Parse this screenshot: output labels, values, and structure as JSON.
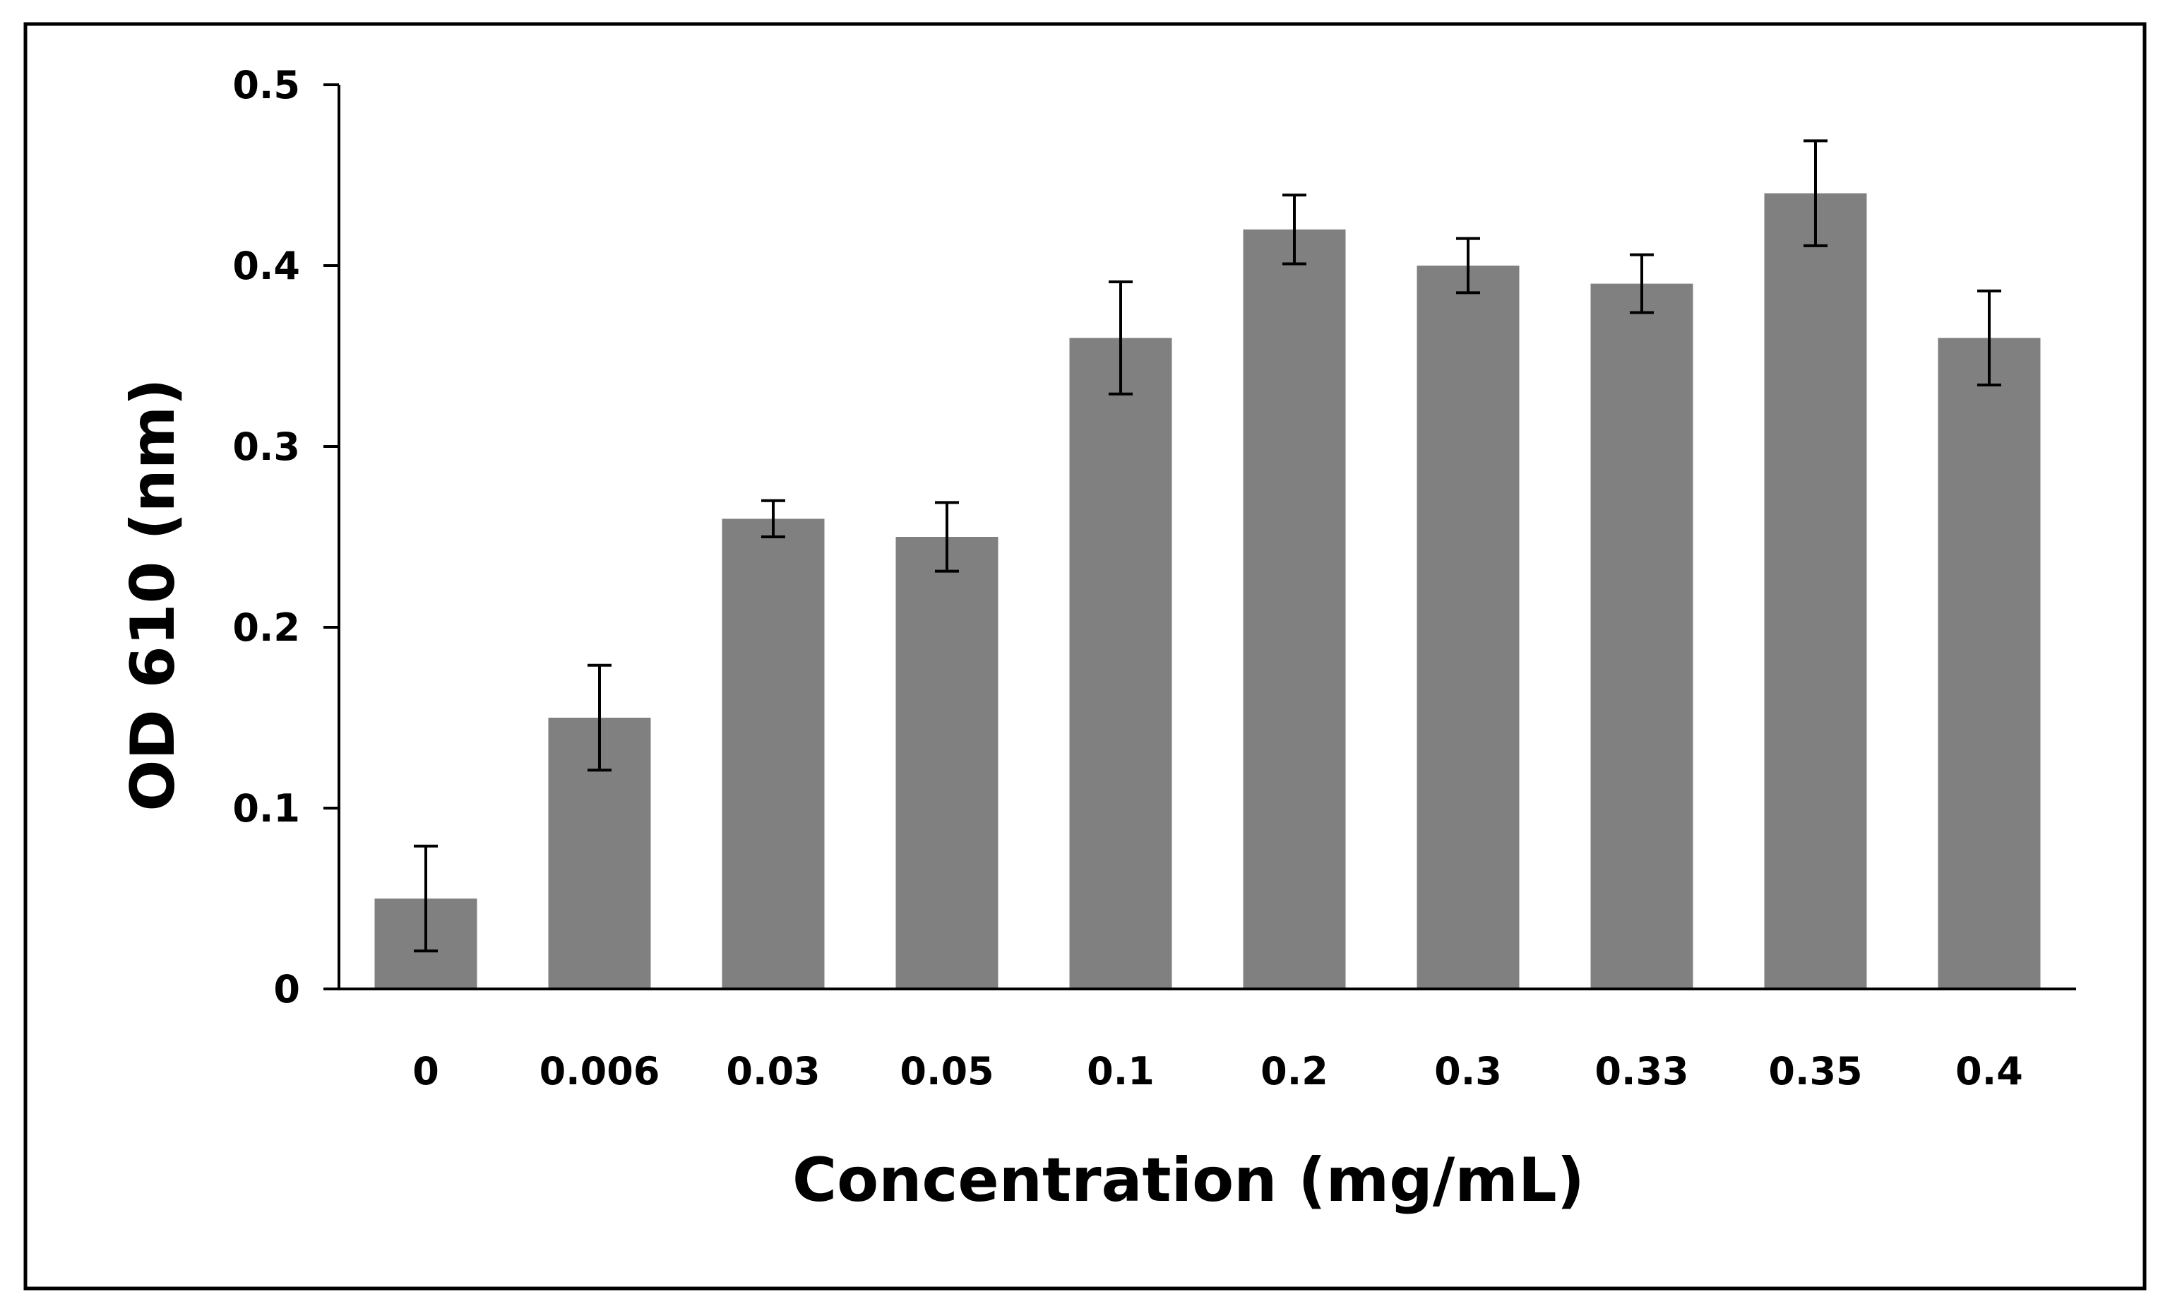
{
  "chart_data": {
    "type": "bar",
    "title": "",
    "xlabel": "Concentration (mg/mL)",
    "ylabel": "OD 610 (nm)",
    "categories": [
      "0",
      "0.006",
      "0.03",
      "0.05",
      "0.1",
      "0.2",
      "0.3",
      "0.33",
      "0.35",
      "0.4"
    ],
    "values": [
      0.05,
      0.15,
      0.26,
      0.25,
      0.36,
      0.42,
      0.4,
      0.39,
      0.44,
      0.36
    ],
    "error": [
      0.029,
      0.029,
      0.01,
      0.019,
      0.031,
      0.019,
      0.015,
      0.016,
      0.029,
      0.026
    ],
    "ylim": [
      0,
      0.5
    ],
    "yticks": [
      "0",
      "0.1",
      "0.2",
      "0.3",
      "0.4",
      "0.5"
    ],
    "grid": false,
    "legend": "none",
    "colors": {
      "bar": "#808080",
      "axis": "#000000",
      "frame": "#000000",
      "background": "#ffffff"
    }
  }
}
